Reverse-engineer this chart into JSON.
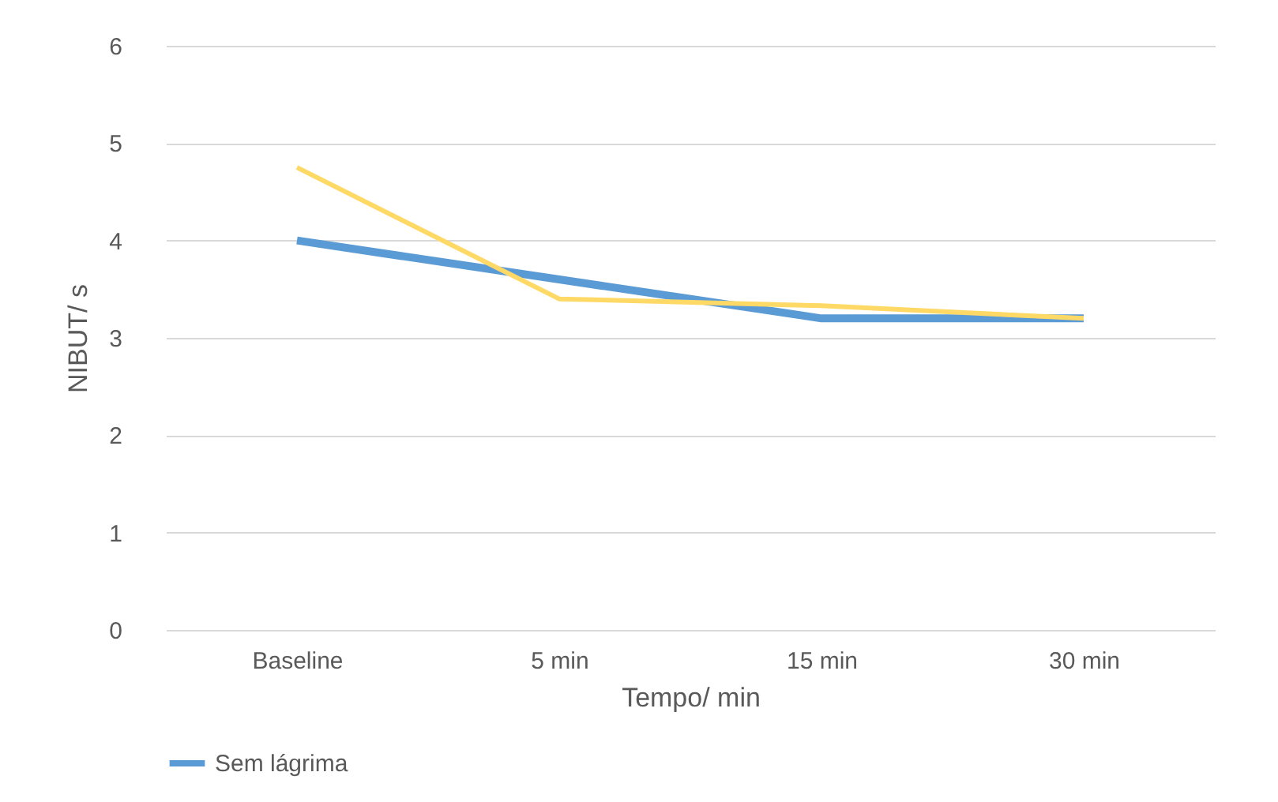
{
  "chart_data": {
    "type": "line",
    "xlabel": "Tempo/ min",
    "ylabel": "NIBUT/ s",
    "categories": [
      "Baseline",
      "5 min",
      "15 min",
      "30 min"
    ],
    "series": [
      {
        "name": "Sem lágrima",
        "color": "#5b9bd5",
        "values": [
          4.0,
          3.6,
          3.2,
          3.2
        ]
      },
      {
        "color": "#ffd966",
        "values": [
          4.75,
          3.4,
          3.33,
          3.2
        ]
      }
    ],
    "ylim": [
      0,
      6
    ],
    "yticks": [
      0,
      1,
      2,
      3,
      4,
      5,
      6
    ],
    "grid": "y",
    "legend": "bottom",
    "marker": "none",
    "line_style": "solid"
  }
}
